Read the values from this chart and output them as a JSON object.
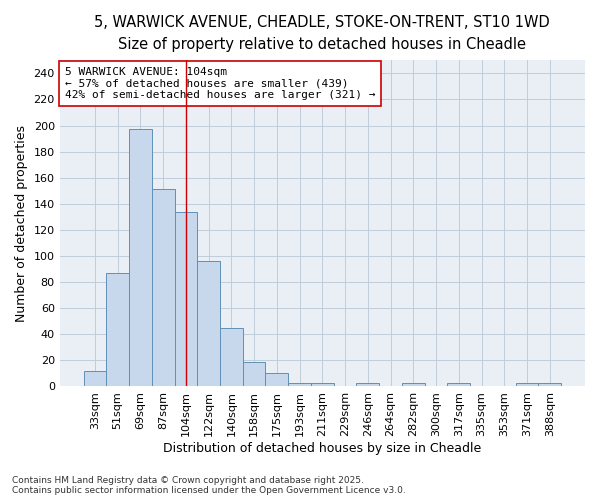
{
  "title_line1": "5, WARWICK AVENUE, CHEADLE, STOKE-ON-TRENT, ST10 1WD",
  "title_line2": "Size of property relative to detached houses in Cheadle",
  "xlabel": "Distribution of detached houses by size in Cheadle",
  "ylabel": "Number of detached properties",
  "categories": [
    "33sqm",
    "51sqm",
    "69sqm",
    "87sqm",
    "104sqm",
    "122sqm",
    "140sqm",
    "158sqm",
    "175sqm",
    "193sqm",
    "211sqm",
    "229sqm",
    "246sqm",
    "264sqm",
    "282sqm",
    "300sqm",
    "317sqm",
    "335sqm",
    "353sqm",
    "371sqm",
    "388sqm"
  ],
  "values": [
    12,
    87,
    197,
    151,
    134,
    96,
    45,
    19,
    10,
    3,
    3,
    0,
    3,
    0,
    3,
    0,
    3,
    0,
    0,
    3,
    3
  ],
  "bar_color": "#c8d8ec",
  "bar_edge_color": "#6090b8",
  "highlight_index": 4,
  "annotation_text": "5 WARWICK AVENUE: 104sqm\n← 57% of detached houses are smaller (439)\n42% of semi-detached houses are larger (321) →",
  "ylim": [
    0,
    250
  ],
  "yticks": [
    0,
    20,
    40,
    60,
    80,
    100,
    120,
    140,
    160,
    180,
    200,
    220,
    240
  ],
  "grid_color": "#c0ccd8",
  "background_color": "#eaeff5",
  "footer_text": "Contains HM Land Registry data © Crown copyright and database right 2025.\nContains public sector information licensed under the Open Government Licence v3.0.",
  "title_fontsize": 10.5,
  "subtitle_fontsize": 9.5,
  "axis_label_fontsize": 9,
  "tick_fontsize": 8,
  "annotation_fontsize": 8,
  "footer_fontsize": 6.5
}
